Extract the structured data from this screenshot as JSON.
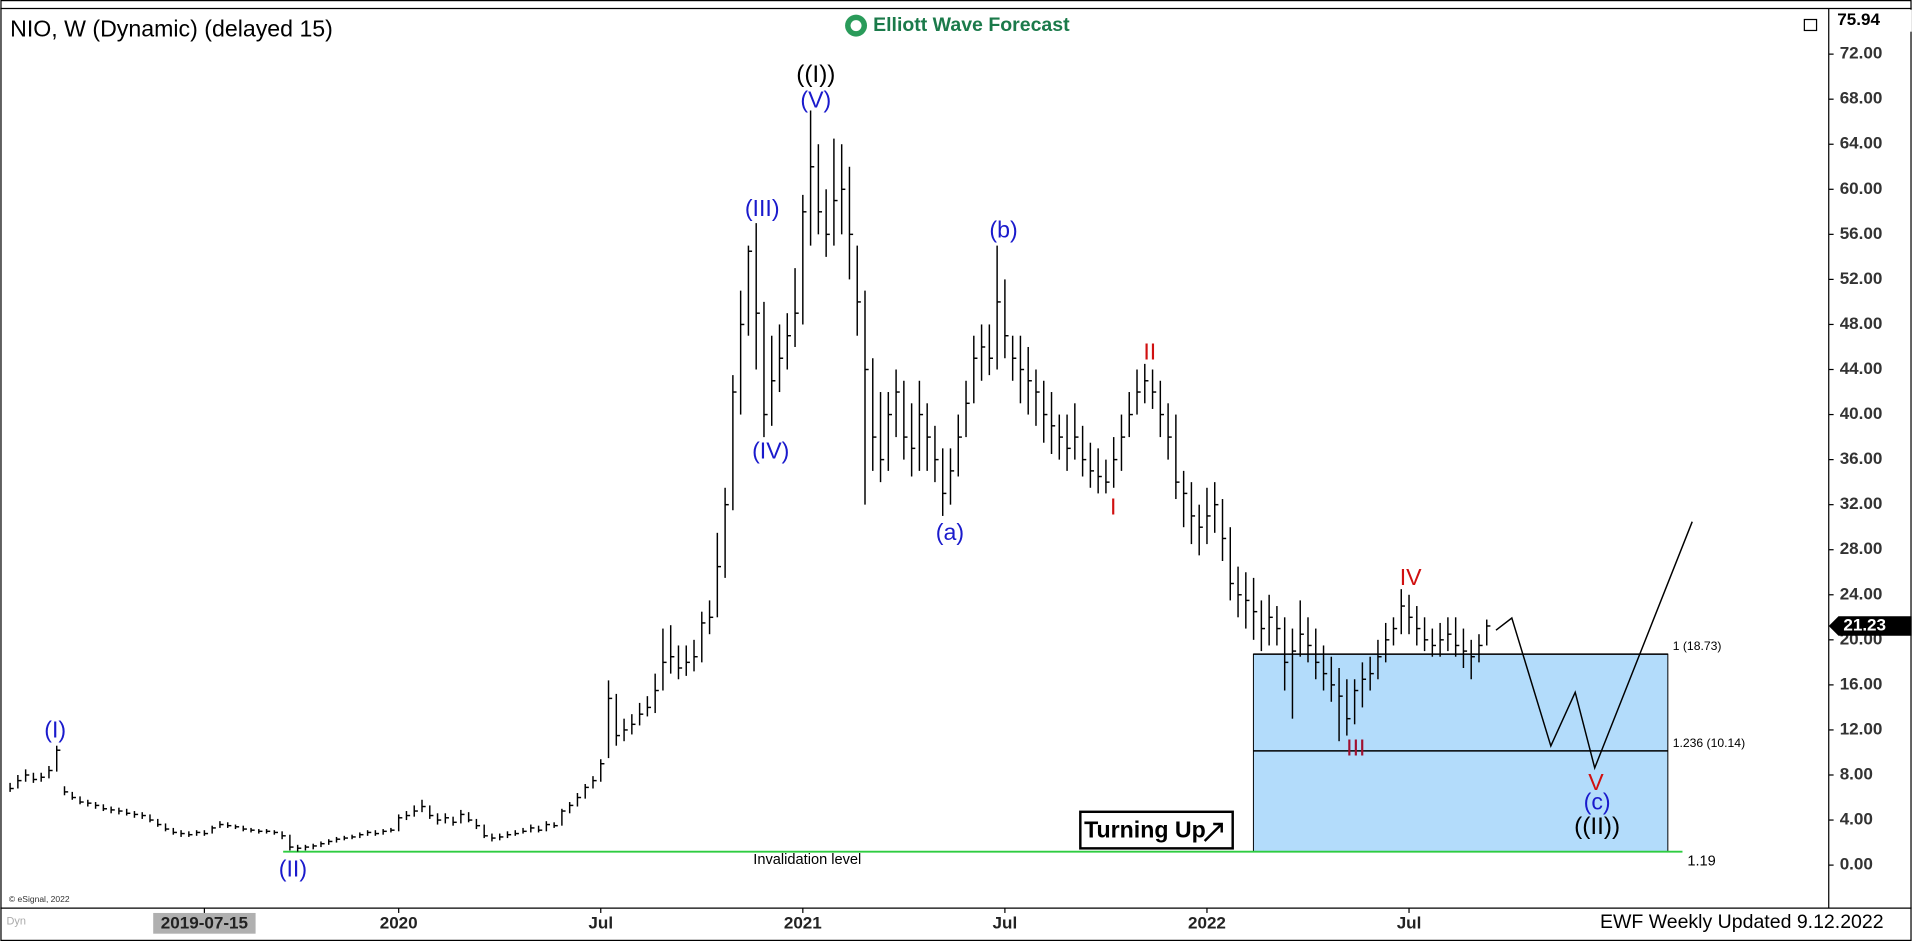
{
  "chart_data": {
    "type": "ohlc",
    "title": "NIO, W (Dynamic) (delayed 15)",
    "brand": "Elliott Wave Forecast",
    "footer": "EWF Weekly Updated 9.12.2022",
    "copyright": "© eSignal, 2022",
    "corner_label": "Dyn",
    "badge": "Turning Up",
    "color": "#000000",
    "ylim": [
      -3.6,
      75.94
    ],
    "xlim": [
      -1,
      233
    ],
    "yticks": [
      {
        "value": 0,
        "label": "0.00"
      },
      {
        "value": 4,
        "label": "4.00"
      },
      {
        "value": 8,
        "label": "8.00"
      },
      {
        "value": 12,
        "label": "12.00"
      },
      {
        "value": 16,
        "label": "16.00"
      },
      {
        "value": 20,
        "label": "20.00"
      },
      {
        "value": 24,
        "label": "24.00"
      },
      {
        "value": 28,
        "label": "28.00"
      },
      {
        "value": 32,
        "label": "32.00"
      },
      {
        "value": 36,
        "label": "36.00"
      },
      {
        "value": 40,
        "label": "40.00"
      },
      {
        "value": 44,
        "label": "44.00"
      },
      {
        "value": 48,
        "label": "48.00"
      },
      {
        "value": 52,
        "label": "52.00"
      },
      {
        "value": 56,
        "label": "56.00"
      },
      {
        "value": 60,
        "label": "60.00"
      },
      {
        "value": 64,
        "label": "64.00"
      },
      {
        "value": 68,
        "label": "68.00"
      },
      {
        "value": 72,
        "label": "72.00"
      }
    ],
    "xticks": [
      {
        "value": 25,
        "label": "2019-07-15"
      },
      {
        "value": 50,
        "label": "2020"
      },
      {
        "value": 76,
        "label": "Jul"
      },
      {
        "value": 102,
        "label": "2021"
      },
      {
        "value": 128,
        "label": "Jul"
      },
      {
        "value": 154,
        "label": "2022"
      },
      {
        "value": 180,
        "label": "Jul"
      }
    ],
    "last_price": 21.23,
    "high": [
      7.3,
      8.0,
      8.5,
      8.2,
      8.2,
      8.8,
      10.6,
      7.0,
      6.5,
      6.1,
      5.8,
      5.6,
      5.4,
      5.2,
      5.1,
      5.0,
      4.8,
      4.7,
      4.5,
      4.1,
      3.7,
      3.3,
      3.1,
      3.0,
      3.1,
      3.1,
      3.5,
      3.9,
      3.8,
      3.6,
      3.5,
      3.3,
      3.2,
      3.2,
      3.1,
      3.0,
      2.7,
      1.8,
      1.8,
      1.9,
      2.1,
      2.3,
      2.5,
      2.6,
      2.7,
      2.9,
      3.1,
      3.1,
      3.2,
      3.3,
      4.5,
      4.8,
      5.3,
      5.8,
      5.3,
      4.6,
      4.6,
      4.3,
      4.9,
      4.7,
      4.1,
      3.6,
      2.8,
      2.8,
      3.0,
      3.1,
      3.3,
      3.6,
      3.5,
      3.9,
      3.8,
      5.0,
      5.6,
      6.4,
      7.2,
      7.9,
      9.4,
      16.4,
      15.2,
      13.0,
      13.4,
      14.4,
      15.0,
      17.0,
      21.0,
      21.3,
      19.5,
      19.5,
      20.0,
      22.5,
      23.5,
      29.5,
      33.5,
      43.5,
      51.0,
      55.0,
      57.0,
      50.0,
      47.0,
      48.0,
      49.0,
      53.0,
      59.5,
      67.0,
      64.0,
      60.0,
      64.5,
      64.0,
      62.0,
      55.0,
      51.0,
      45.0,
      42.0,
      42.0,
      44.0,
      43.0,
      41.0,
      43.0,
      41.0,
      39.0,
      37.0,
      37.0,
      40.0,
      43.0,
      47.0,
      48.0,
      48.0,
      55.0,
      52.0,
      47.0,
      47.0,
      46.0,
      44.0,
      43.0,
      42.0,
      40.0,
      40.0,
      41.0,
      39.0,
      37.5,
      37.0,
      36.0,
      38.0,
      40.0,
      42.0,
      44.0,
      44.5,
      44.0,
      43.0,
      41.0,
      40.0,
      35.0,
      34.0,
      32.0,
      33.5,
      34.0,
      32.5,
      30.0,
      26.5,
      26.0,
      25.5,
      23.5,
      24.0,
      23.0,
      22.0,
      21.0,
      23.5,
      22.0,
      21.0,
      19.5,
      18.5,
      17.5,
      16.5,
      16.5,
      18.0,
      18.5,
      20.0,
      21.5,
      22.0,
      24.5,
      24.0,
      23.0,
      22.0,
      21.0,
      21.5,
      22.0,
      22.0,
      21.0,
      20.0,
      20.5,
      21.8
    ],
    "low": [
      6.5,
      6.8,
      7.4,
      7.3,
      7.4,
      7.7,
      8.3,
      6.2,
      5.8,
      5.4,
      5.2,
      5.0,
      4.8,
      4.6,
      4.5,
      4.4,
      4.2,
      4.1,
      3.8,
      3.4,
      3.0,
      2.7,
      2.5,
      2.5,
      2.6,
      2.6,
      2.8,
      3.3,
      3.3,
      3.2,
      3.0,
      2.9,
      2.8,
      2.8,
      2.7,
      2.3,
      1.3,
      1.2,
      1.3,
      1.4,
      1.6,
      1.8,
      2.0,
      2.2,
      2.3,
      2.4,
      2.6,
      2.6,
      2.7,
      2.9,
      3.0,
      4.0,
      4.3,
      4.7,
      4.1,
      3.6,
      3.7,
      3.5,
      3.7,
      3.8,
      3.2,
      2.4,
      2.1,
      2.2,
      2.4,
      2.6,
      2.8,
      2.9,
      2.9,
      3.0,
      3.3,
      3.5,
      4.6,
      5.2,
      5.9,
      6.8,
      7.4,
      9.5,
      10.6,
      11.0,
      11.6,
      12.4,
      13.2,
      13.5,
      15.5,
      17.0,
      16.5,
      16.8,
      17.2,
      18.0,
      20.5,
      22.0,
      25.5,
      31.5,
      40.0,
      47.0,
      44.0,
      38.0,
      39.0,
      42.0,
      44.0,
      46.0,
      48.0,
      55.0,
      56.0,
      54.0,
      55.0,
      56.0,
      52.0,
      47.0,
      32.0,
      35.0,
      34.0,
      35.0,
      38.0,
      36.0,
      34.5,
      35.0,
      35.0,
      34.0,
      31.0,
      32.0,
      34.5,
      38.0,
      41.0,
      43.0,
      43.5,
      44.0,
      45.0,
      43.0,
      41.0,
      40.0,
      39.0,
      37.5,
      36.5,
      36.0,
      35.0,
      36.0,
      34.5,
      33.5,
      33.0,
      33.0,
      33.5,
      35.0,
      38.0,
      40.0,
      41.0,
      40.5,
      38.0,
      36.0,
      32.5,
      30.0,
      28.5,
      27.5,
      28.5,
      29.5,
      27.0,
      23.5,
      22.0,
      21.0,
      20.0,
      19.0,
      19.5,
      19.5,
      15.5,
      13.0,
      18.5,
      18.0,
      16.5,
      15.5,
      14.5,
      11.0,
      11.5,
      12.5,
      14.0,
      15.5,
      16.5,
      18.0,
      19.5,
      20.5,
      20.5,
      19.5,
      19.0,
      18.5,
      18.5,
      19.0,
      18.5,
      17.5,
      16.5,
      18.0,
      19.5
    ],
    "close": [
      6.8,
      7.5,
      8.0,
      7.6,
      7.8,
      8.4,
      10.2,
      6.5,
      6.0,
      5.6,
      5.5,
      5.3,
      5.0,
      4.9,
      4.8,
      4.6,
      4.5,
      4.4,
      4.0,
      3.6,
      3.2,
      2.9,
      2.8,
      2.7,
      2.9,
      2.8,
      3.3,
      3.6,
      3.5,
      3.4,
      3.2,
      3.1,
      3.0,
      3.0,
      2.9,
      2.6,
      1.6,
      1.5,
      1.6,
      1.7,
      1.9,
      2.1,
      2.3,
      2.4,
      2.5,
      2.7,
      2.9,
      2.8,
      3.0,
      3.1,
      4.2,
      4.4,
      4.8,
      5.2,
      4.4,
      4.0,
      4.2,
      3.8,
      4.5,
      4.0,
      3.5,
      2.6,
      2.4,
      2.5,
      2.7,
      2.8,
      3.0,
      3.3,
      3.1,
      3.6,
      3.5,
      4.8,
      5.3,
      6.0,
      6.9,
      7.5,
      9.0,
      14.8,
      11.5,
      12.0,
      12.5,
      13.4,
      14.0,
      15.5,
      18.0,
      18.5,
      17.5,
      18.0,
      18.5,
      21.5,
      22.0,
      26.5,
      32.0,
      42.0,
      48.0,
      54.5,
      49.0,
      40.0,
      43.0,
      45.0,
      47.0,
      49.0,
      58.0,
      62.0,
      58.0,
      56.0,
      59.0,
      60.0,
      56.0,
      50.0,
      44.0,
      38.0,
      36.0,
      40.0,
      42.0,
      38.0,
      37.0,
      40.0,
      38.0,
      36.0,
      33.0,
      35.0,
      38.0,
      41.0,
      45.0,
      46.0,
      45.0,
      50.0,
      47.0,
      45.0,
      44.0,
      43.0,
      42.0,
      40.0,
      39.0,
      38.0,
      37.0,
      38.0,
      36.0,
      35.0,
      34.5,
      34.0,
      36.0,
      38.0,
      40.0,
      42.0,
      43.0,
      42.0,
      40.0,
      38.0,
      34.0,
      33.0,
      31.0,
      30.0,
      31.0,
      32.0,
      29.0,
      25.0,
      24.0,
      23.5,
      22.5,
      21.0,
      22.0,
      21.0,
      18.0,
      19.0,
      20.5,
      19.5,
      18.0,
      17.0,
      16.0,
      15.0,
      13.0,
      15.5,
      16.5,
      17.0,
      18.5,
      20.0,
      21.0,
      23.0,
      22.0,
      21.0,
      20.0,
      19.5,
      20.0,
      20.5,
      19.5,
      19.0,
      18.5,
      19.5,
      21.23
    ],
    "levels": [
      {
        "label": "1 (18.73)",
        "value": 18.73
      },
      {
        "label": "1.236 (10.14)",
        "value": 10.14
      }
    ],
    "invalidation": {
      "label": "Invalidation level",
      "value": 1.19
    },
    "annotations": [
      {
        "text": "((I))",
        "color": "#000000"
      },
      {
        "text": "(V)",
        "color": "#1a1acc"
      },
      {
        "text": "(III)",
        "color": "#1a1acc"
      },
      {
        "text": "(IV)",
        "color": "#1a1acc"
      },
      {
        "text": "(I)",
        "color": "#1a1acc"
      },
      {
        "text": "(II)",
        "color": "#1a1acc"
      },
      {
        "text": "(a)",
        "color": "#1a1acc"
      },
      {
        "text": "(b)",
        "color": "#1a1acc"
      },
      {
        "text": "I",
        "color": "#d01010"
      },
      {
        "text": "II",
        "color": "#d01010"
      },
      {
        "text": "III",
        "color": "#a01030"
      },
      {
        "text": "IV",
        "color": "#d01010"
      },
      {
        "text": "V",
        "color": "#d01010"
      },
      {
        "text": "(c)",
        "color": "#1a1acc"
      },
      {
        "text": "((II))",
        "color": "#000000"
      }
    ]
  }
}
